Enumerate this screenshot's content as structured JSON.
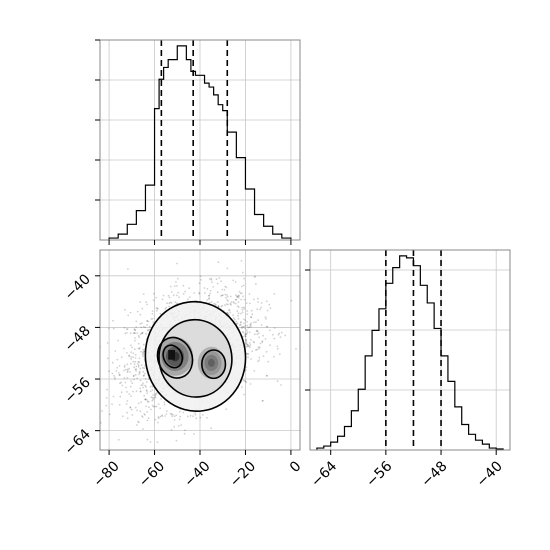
{
  "chart_data": [
    {
      "id": "hist_x",
      "type": "histogram",
      "xlim": [
        -84,
        4
      ],
      "x_ticks": [
        -80,
        -60,
        -40,
        -20,
        0
      ],
      "show_tick_labels": false,
      "grid": true,
      "bin_edges": [
        -80,
        -76,
        -72,
        -68,
        -64,
        -60,
        -58,
        -56,
        -54,
        -52,
        -50,
        -48,
        -46,
        -44,
        -42,
        -40,
        -38,
        -36,
        -34,
        -32,
        -30,
        -28,
        -24,
        -20,
        -16,
        -12,
        -8,
        -4,
        0
      ],
      "counts": [
        0.01,
        0.03,
        0.08,
        0.15,
        0.28,
        0.67,
        0.82,
        0.88,
        0.92,
        0.92,
        0.99,
        0.99,
        0.92,
        0.86,
        0.84,
        0.84,
        0.8,
        0.78,
        0.74,
        0.69,
        0.66,
        0.55,
        0.42,
        0.26,
        0.13,
        0.07,
        0.03,
        0.01
      ],
      "quantile_lines": [
        -57,
        -43,
        -28
      ]
    },
    {
      "id": "hist_y",
      "type": "histogram",
      "xlim": [
        -67,
        -38
      ],
      "x_ticks": [
        -64,
        -56,
        -48,
        -40
      ],
      "x_tick_labels": [
        "−64",
        "−56",
        "−48",
        "−40"
      ],
      "grid": true,
      "bin_edges": [
        -66,
        -65,
        -64,
        -63,
        -62,
        -61,
        -60,
        -59,
        -58,
        -57,
        -56,
        -55,
        -54,
        -53,
        -52,
        -51,
        -50,
        -49,
        -48,
        -47,
        -46,
        -45,
        -44,
        -43,
        -42,
        -41,
        -40,
        -39
      ],
      "counts": [
        0.01,
        0.02,
        0.04,
        0.07,
        0.12,
        0.2,
        0.31,
        0.48,
        0.61,
        0.72,
        0.85,
        0.93,
        0.99,
        0.98,
        0.94,
        0.84,
        0.75,
        0.62,
        0.48,
        0.35,
        0.22,
        0.13,
        0.08,
        0.05,
        0.03,
        0.01,
        0.005
      ],
      "quantile_lines": [
        -56,
        -52,
        -48
      ]
    },
    {
      "id": "scatter_xy",
      "type": "scatter_contour",
      "xlim": [
        -84,
        4
      ],
      "ylim": [
        -67,
        -36
      ],
      "x_ticks": [
        -80,
        -60,
        -40,
        -20,
        0
      ],
      "x_tick_labels": [
        "−80",
        "−60",
        "−40",
        "−20",
        "0"
      ],
      "y_ticks": [
        -40,
        -48,
        -56,
        -64
      ],
      "y_tick_labels": [
        "−40",
        "−48",
        "−56",
        "−64"
      ],
      "grid": true,
      "point_cloud": {
        "center": [
          -44,
          -51.5
        ],
        "spread": [
          14,
          4.5
        ],
        "count": 2600
      },
      "blobs": [
        {
          "cx": -51,
          "cy": -52.5,
          "rx": 8,
          "ry": 3.0,
          "level": 0.8
        },
        {
          "cx": -35,
          "cy": -53.5,
          "rx": 6,
          "ry": 2.5,
          "level": 0.55
        }
      ],
      "contours": [
        {
          "cx": -42,
          "cy": -52.5,
          "rx": 22,
          "ry": 8.5,
          "rot": 8
        },
        {
          "cx": -42,
          "cy": -52.8,
          "rx": 16,
          "ry": 6.0,
          "rot": 8
        },
        {
          "cx": -51,
          "cy": -52.7,
          "rx": 7.5,
          "ry": 3.2,
          "rot": 20
        },
        {
          "cx": -34,
          "cy": -53.7,
          "rx": 5.2,
          "ry": 2.2,
          "rot": 0
        },
        {
          "cx": -52,
          "cy": -52.5,
          "rx": 4.0,
          "ry": 1.8,
          "rot": 25
        }
      ]
    }
  ]
}
